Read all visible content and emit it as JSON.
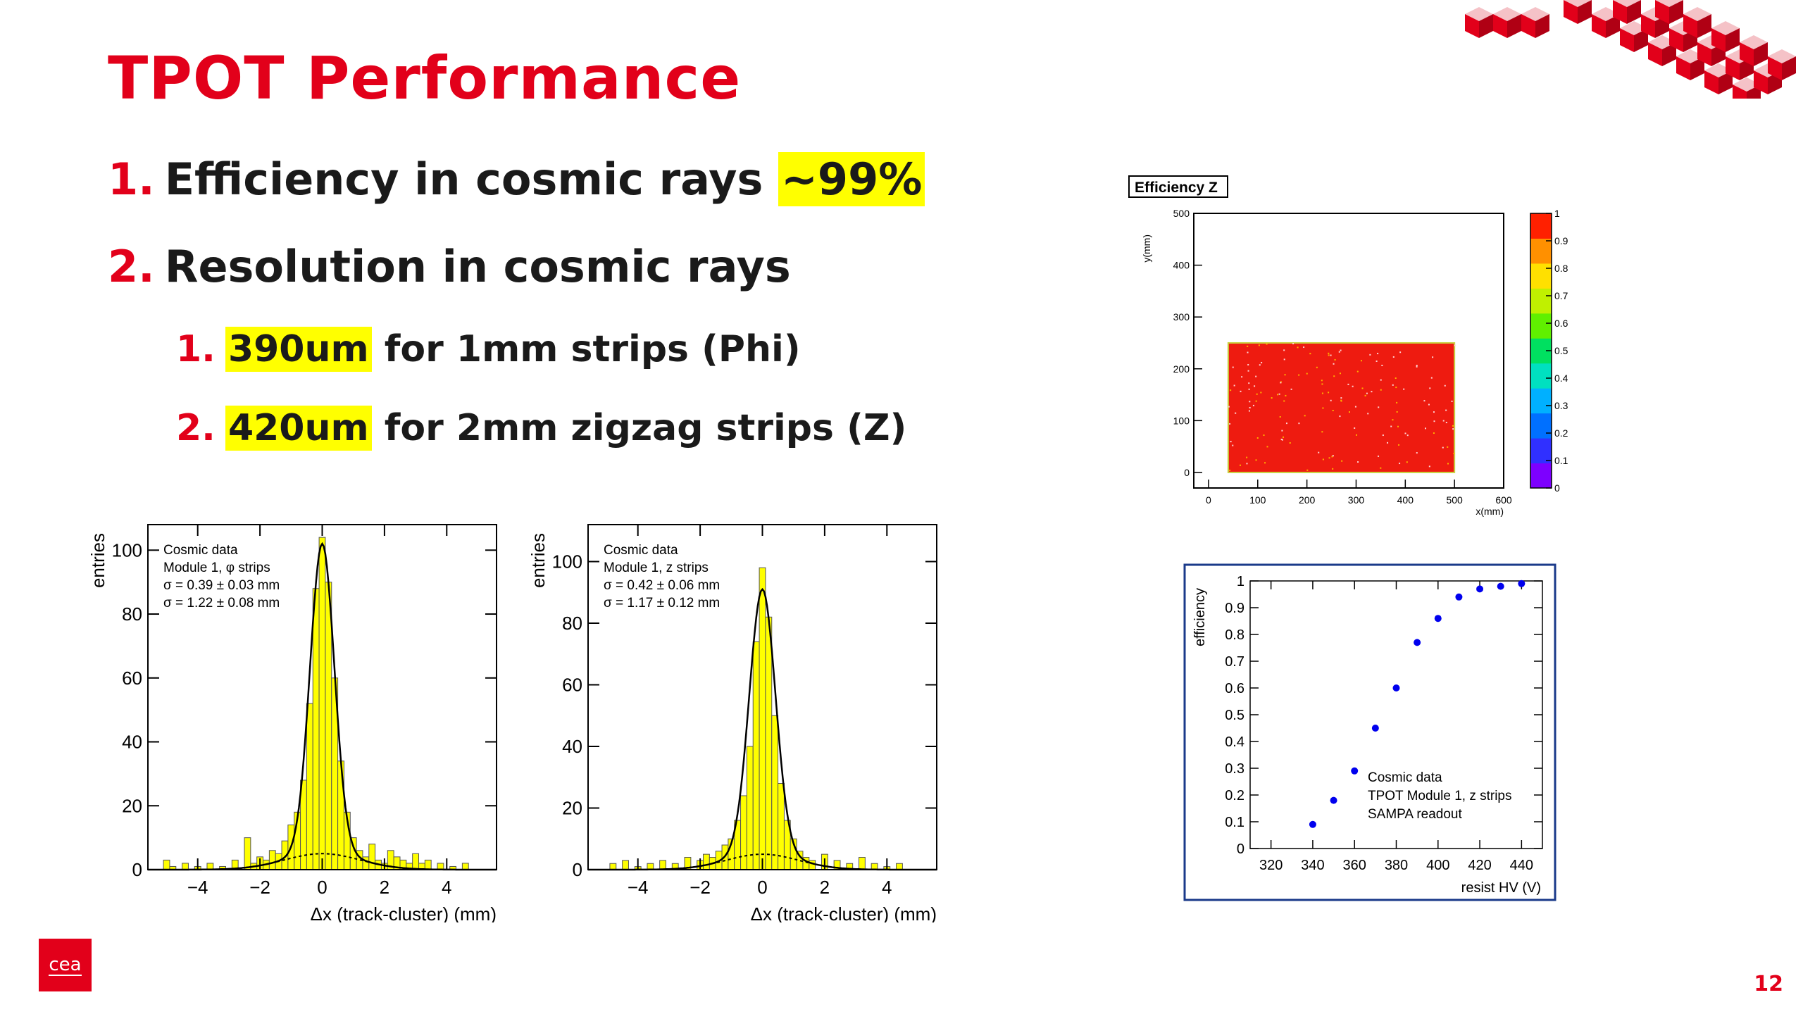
{
  "slide": {
    "title": "TPOT Performance",
    "page_number": "12",
    "logo_text": "cea",
    "bullets": [
      {
        "num": "1.",
        "highlight": "",
        "text": "Efficiency in cosmic rays ",
        "highlight_after": "~99%"
      },
      {
        "num": "2.",
        "text": "Resolution in cosmic rays"
      }
    ],
    "sub_bullets": [
      {
        "num": "1.",
        "highlight": "390um",
        "text": " for 1mm strips (Phi)"
      },
      {
        "num": "2.",
        "highlight": "420um",
        "text": " for 2mm zigzag strips (Z)"
      }
    ]
  },
  "colors": {
    "accent": "#e2001a",
    "highlight": "#ffff00",
    "hist_fill": "#ffff00"
  },
  "chart_data": [
    {
      "type": "bar",
      "name": "phi-resolution-histogram",
      "xlabel": "Δx (track-cluster) (mm)",
      "ylabel": "entries",
      "xlim": [
        -5.6,
        5.6
      ],
      "ylim": [
        0,
        108
      ],
      "xticks": [
        -4,
        -2,
        0,
        2,
        4
      ],
      "yticks": [
        0,
        20,
        40,
        60,
        80,
        100
      ],
      "annotations": [
        "Cosmic data",
        "Module 1, φ strips",
        "σ = 0.39 ± 0.03 mm",
        "σ = 1.22 ± 0.08 mm"
      ],
      "sigma_narrow": 0.39,
      "sigma_wide": 1.22,
      "fit_peak": 97,
      "wide_peak": 5,
      "x": [
        -5.0,
        -4.8,
        -4.4,
        -4.0,
        -3.6,
        -3.2,
        -2.8,
        -2.4,
        -2.2,
        -2.0,
        -1.8,
        -1.6,
        -1.4,
        -1.2,
        -1.0,
        -0.8,
        -0.6,
        -0.4,
        -0.2,
        0.0,
        0.2,
        0.4,
        0.6,
        0.8,
        1.0,
        1.2,
        1.4,
        1.6,
        1.8,
        2.0,
        2.2,
        2.4,
        2.6,
        2.8,
        3.0,
        3.2,
        3.4,
        3.8,
        4.2,
        4.6
      ],
      "values": [
        3,
        1,
        2,
        1,
        2,
        1,
        3,
        10,
        2,
        4,
        3,
        6,
        5,
        9,
        14,
        18,
        28,
        52,
        88,
        104,
        90,
        60,
        34,
        18,
        10,
        6,
        4,
        8,
        3,
        2,
        6,
        4,
        3,
        2,
        5,
        2,
        3,
        2,
        1,
        2
      ]
    },
    {
      "type": "bar",
      "name": "z-resolution-histogram",
      "xlabel": "Δx (track-cluster) (mm)",
      "ylabel": "entries",
      "xlim": [
        -5.6,
        5.6
      ],
      "ylim": [
        0,
        112
      ],
      "xticks": [
        -4,
        -2,
        0,
        2,
        4
      ],
      "yticks": [
        0,
        20,
        40,
        60,
        80,
        100
      ],
      "annotations": [
        "Cosmic data",
        "Module 1, z strips",
        "σ = 0.42 ± 0.06 mm",
        "σ = 1.17 ± 0.12 mm"
      ],
      "sigma_narrow": 0.42,
      "sigma_wide": 1.17,
      "fit_peak": 86,
      "wide_peak": 5,
      "x": [
        -4.8,
        -4.4,
        -4.0,
        -3.6,
        -3.2,
        -2.8,
        -2.4,
        -2.0,
        -1.8,
        -1.6,
        -1.4,
        -1.2,
        -1.0,
        -0.8,
        -0.6,
        -0.4,
        -0.2,
        0.0,
        0.2,
        0.4,
        0.6,
        0.8,
        1.0,
        1.2,
        1.4,
        1.6,
        2.0,
        2.4,
        2.8,
        3.2,
        3.6,
        4.0,
        4.4
      ],
      "values": [
        2,
        3,
        1,
        2,
        3,
        2,
        4,
        3,
        5,
        4,
        6,
        8,
        10,
        16,
        24,
        40,
        74,
        98,
        82,
        50,
        28,
        16,
        10,
        6,
        4,
        3,
        5,
        3,
        2,
        4,
        2,
        1,
        2
      ]
    },
    {
      "type": "heatmap",
      "name": "efficiency-z-map",
      "title": "Efficiency Z",
      "xlabel": "x(mm)",
      "ylabel": "y(mm)",
      "xlim": [
        -30,
        600
      ],
      "ylim": [
        -30,
        500
      ],
      "xticks": [
        0,
        100,
        200,
        300,
        400,
        500,
        600
      ],
      "yticks": [
        0,
        100,
        200,
        300,
        400,
        500
      ],
      "colorbar_ticks": [
        0,
        0.1,
        0.2,
        0.3,
        0.4,
        0.5,
        0.6,
        0.7,
        0.8,
        0.9,
        1
      ],
      "active_region": {
        "x": [
          40,
          500
        ],
        "y": [
          0,
          250
        ]
      },
      "efficiency": 0.99
    },
    {
      "type": "scatter",
      "name": "efficiency-vs-hv",
      "xlabel": "resist HV (V)",
      "ylabel": "efficiency",
      "xlim": [
        310,
        450
      ],
      "ylim": [
        0,
        1
      ],
      "xticks": [
        320,
        340,
        360,
        380,
        400,
        420,
        440
      ],
      "yticks": [
        0,
        0.1,
        0.2,
        0.3,
        0.4,
        0.5,
        0.6,
        0.7,
        0.8,
        0.9,
        1
      ],
      "legend": [
        "Cosmic data",
        "TPOT Module 1, z strips",
        "SAMPA readout"
      ],
      "series": [
        {
          "color": "#0000ee",
          "x": [
            340,
            350,
            360,
            370,
            380,
            390,
            400,
            410,
            420,
            430,
            440
          ],
          "y": [
            0.09,
            0.18,
            0.29,
            0.45,
            0.6,
            0.77,
            0.86,
            0.94,
            0.97,
            0.98,
            0.99
          ]
        }
      ]
    }
  ]
}
